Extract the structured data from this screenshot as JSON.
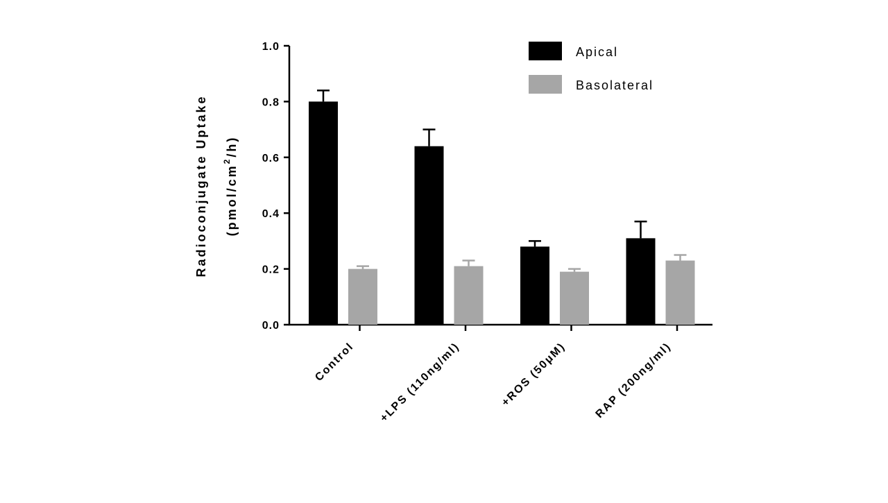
{
  "chart_data": {
    "type": "bar",
    "title": "",
    "xlabel": "",
    "ylabel_line1": "Radioconjugate Uptake",
    "ylabel_line2_prefix": "(pmol/cm",
    "ylabel_line2_sup": "2",
    "ylabel_line2_suffix": "/h)",
    "ylim": [
      0,
      1.0
    ],
    "yticks": [
      0.0,
      0.2,
      0.4,
      0.6,
      0.8,
      1.0
    ],
    "ytick_labels": [
      "0.0",
      "0.2",
      "0.4",
      "0.6",
      "0.8",
      "1.0"
    ],
    "categories": [
      "Control",
      "+LPS (110ng/ml)",
      "+ROS (50μM)",
      "RAP (200ng/ml)"
    ],
    "series": [
      {
        "name": "Apical",
        "color": "#000000",
        "values": [
          0.8,
          0.64,
          0.28,
          0.31
        ],
        "errors": [
          0.04,
          0.06,
          0.02,
          0.06
        ]
      },
      {
        "name": "Basolateral",
        "color": "#a6a6a6",
        "values": [
          0.2,
          0.21,
          0.19,
          0.23
        ],
        "errors": [
          0.01,
          0.02,
          0.01,
          0.02
        ]
      }
    ],
    "legend_position": "top-right",
    "grid": false
  }
}
